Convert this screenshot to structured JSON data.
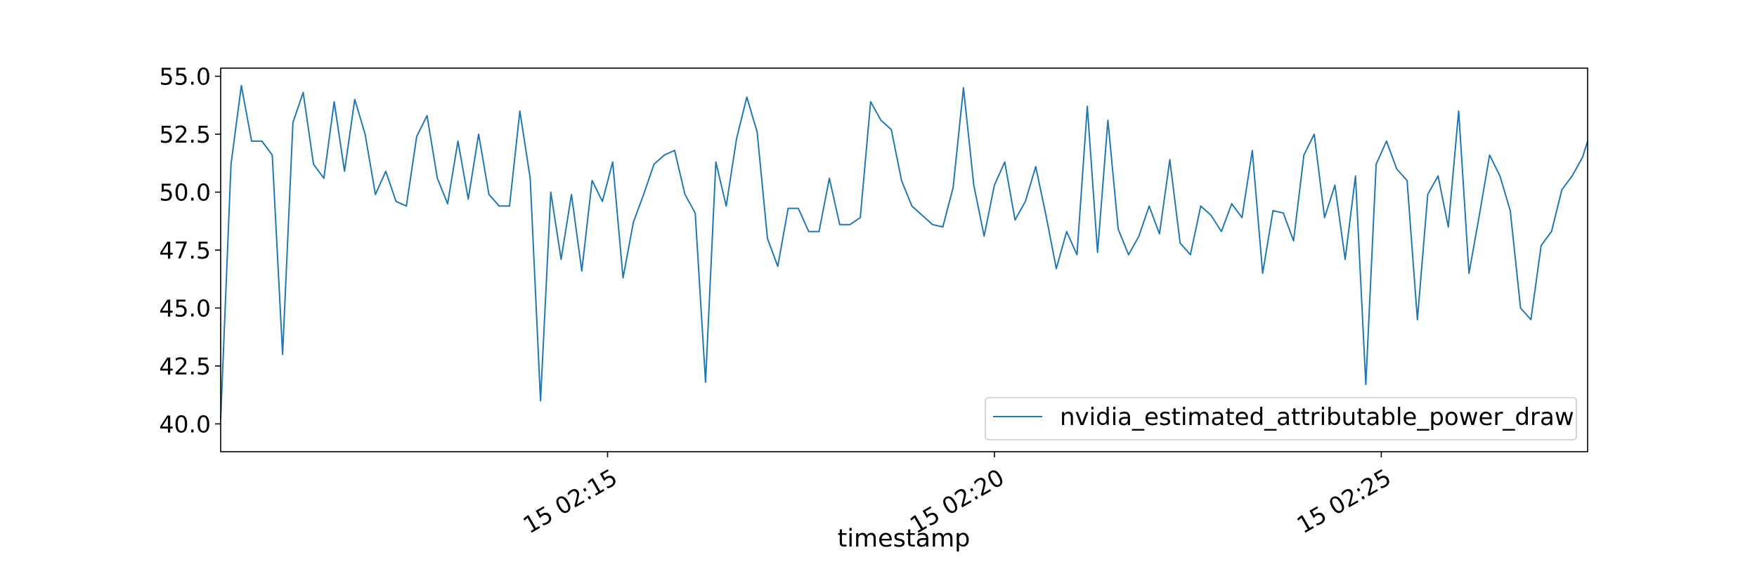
{
  "chart_data": {
    "type": "line",
    "xlabel": "timestamp",
    "x_axis_kind": "time (seconds)",
    "y_ticks": [
      "40.0",
      "42.5",
      "45.0",
      "47.5",
      "50.0",
      "52.5",
      "55.0"
    ],
    "ylim": [
      38.8,
      55.35
    ],
    "x_ticks": [
      {
        "at": "02:15:00",
        "label": "15 02:15"
      },
      {
        "at": "02:20:00",
        "label": "15 02:20"
      },
      {
        "at": "02:25:00",
        "label": "15 02:25"
      }
    ],
    "xlim": [
      "02:10:00",
      "02:27:40"
    ],
    "grid": false,
    "legend_position": "bottom-right",
    "line_color": "#1f77b4",
    "series": [
      {
        "name": "nvidia_estimated_attributable_power_draw",
        "x": [
          "02:10:00",
          "02:10:08",
          "02:10:16",
          "02:10:24",
          "02:10:32",
          "02:10:40",
          "02:10:48",
          "02:10:56",
          "02:11:04",
          "02:11:12",
          "02:11:20",
          "02:11:28",
          "02:11:36",
          "02:11:44",
          "02:11:52",
          "02:12:00",
          "02:12:08",
          "02:12:16",
          "02:12:24",
          "02:12:32",
          "02:12:40",
          "02:12:48",
          "02:12:56",
          "02:13:04",
          "02:13:12",
          "02:13:20",
          "02:13:28",
          "02:13:36",
          "02:13:44",
          "02:13:52",
          "02:14:00",
          "02:14:08",
          "02:14:16",
          "02:14:24",
          "02:14:32",
          "02:14:40",
          "02:14:48",
          "02:14:56",
          "02:15:04",
          "02:15:12",
          "02:15:20",
          "02:15:28",
          "02:15:36",
          "02:15:44",
          "02:15:52",
          "02:16:00",
          "02:16:08",
          "02:16:16",
          "02:16:24",
          "02:16:32",
          "02:16:40",
          "02:16:48",
          "02:16:56",
          "02:17:04",
          "02:17:12",
          "02:17:20",
          "02:17:28",
          "02:17:36",
          "02:17:44",
          "02:17:52",
          "02:18:00",
          "02:18:08",
          "02:18:16",
          "02:18:24",
          "02:18:32",
          "02:18:40",
          "02:18:48",
          "02:18:56",
          "02:19:04",
          "02:19:12",
          "02:19:20",
          "02:19:28",
          "02:19:36",
          "02:19:44",
          "02:19:52",
          "02:20:00",
          "02:20:08",
          "02:20:16",
          "02:20:24",
          "02:20:32",
          "02:20:40",
          "02:20:48",
          "02:20:56",
          "02:21:04",
          "02:21:12",
          "02:21:20",
          "02:21:28",
          "02:21:36",
          "02:21:44",
          "02:21:52",
          "02:22:00",
          "02:22:08",
          "02:22:16",
          "02:22:24",
          "02:22:32",
          "02:22:40",
          "02:22:48",
          "02:22:56",
          "02:23:04",
          "02:23:12",
          "02:23:20",
          "02:23:28",
          "02:23:36",
          "02:23:44",
          "02:23:52",
          "02:24:00",
          "02:24:08",
          "02:24:16",
          "02:24:24",
          "02:24:32",
          "02:24:40",
          "02:24:48",
          "02:24:56",
          "02:25:04",
          "02:25:12",
          "02:25:20",
          "02:25:28",
          "02:25:36",
          "02:25:44",
          "02:25:52",
          "02:26:00",
          "02:26:08",
          "02:26:16",
          "02:26:24",
          "02:26:32",
          "02:26:40",
          "02:26:48",
          "02:26:56",
          "02:27:04",
          "02:27:12",
          "02:27:20",
          "02:27:28",
          "02:27:36",
          "02:27:40"
        ],
        "y": [
          40.2,
          51.2,
          54.6,
          52.2,
          52.2,
          51.6,
          43.0,
          53.0,
          54.3,
          51.2,
          50.6,
          53.9,
          50.9,
          54.0,
          52.5,
          49.9,
          50.9,
          49.6,
          49.4,
          52.4,
          53.3,
          50.6,
          49.5,
          52.2,
          49.7,
          52.5,
          49.9,
          49.4,
          49.4,
          53.5,
          50.6,
          41.0,
          50.0,
          47.1,
          49.9,
          46.6,
          50.5,
          49.6,
          51.3,
          46.3,
          48.7,
          49.9,
          51.2,
          51.6,
          51.8,
          49.9,
          49.1,
          41.8,
          51.3,
          49.4,
          52.3,
          54.1,
          52.6,
          48.0,
          46.8,
          49.3,
          49.3,
          48.3,
          48.3,
          50.6,
          48.6,
          48.6,
          48.9,
          53.9,
          53.1,
          52.7,
          50.5,
          49.4,
          49.0,
          48.6,
          48.5,
          50.2,
          54.5,
          50.3,
          48.1,
          50.3,
          51.3,
          48.8,
          49.6,
          51.1,
          49.0,
          46.7,
          48.3,
          47.3,
          53.7,
          47.4,
          53.1,
          48.4,
          47.3,
          48.1,
          49.4,
          48.2,
          51.4,
          47.8,
          47.3,
          49.4,
          49.0,
          48.3,
          49.5,
          48.9,
          51.8,
          46.5,
          49.2,
          49.1,
          47.9,
          51.6,
          52.5,
          48.9,
          50.3,
          47.1,
          50.7,
          41.7,
          51.2,
          52.2,
          51.0,
          50.5,
          44.5,
          49.9,
          50.7,
          48.5,
          53.5,
          46.5,
          49.0,
          51.6,
          50.7,
          49.2,
          45.0,
          44.5,
          47.7,
          48.3,
          50.1,
          50.7,
          51.5,
          52.2
        ]
      }
    ]
  }
}
